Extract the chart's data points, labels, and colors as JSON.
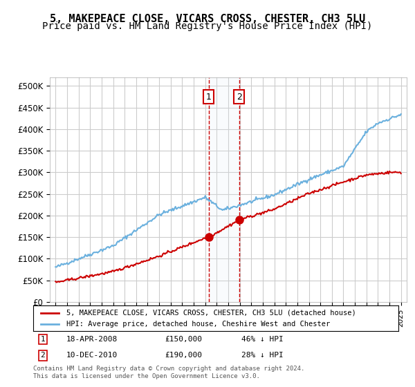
{
  "title": "5, MAKEPEACE CLOSE, VICARS CROSS, CHESTER, CH3 5LU",
  "subtitle": "Price paid vs. HM Land Registry's House Price Index (HPI)",
  "xlabel": "",
  "ylabel": "",
  "ylim": [
    0,
    500000
  ],
  "yticks": [
    0,
    50000,
    100000,
    150000,
    200000,
    250000,
    300000,
    350000,
    400000,
    450000,
    500000
  ],
  "ytick_labels": [
    "£0",
    "£50K",
    "£100K",
    "£150K",
    "£200K",
    "£250K",
    "£300K",
    "£350K",
    "£400K",
    "£450K",
    "£500K"
  ],
  "hpi_color": "#6ab0de",
  "price_color": "#cc0000",
  "marker_color": "#cc0000",
  "annotation_bg": "#dce9f5",
  "annotation_border": "#cc0000",
  "grid_color": "#cccccc",
  "background_color": "#ffffff",
  "sale1_date_num": 2008.3,
  "sale2_date_num": 2010.94,
  "sale1_label": "1",
  "sale2_label": "2",
  "sale1_price": 150000,
  "sale2_price": 190000,
  "legend_entry1": "5, MAKEPEACE CLOSE, VICARS CROSS, CHESTER, CH3 5LU (detached house)",
  "legend_entry2": "HPI: Average price, detached house, Cheshire West and Chester",
  "table_row1": "1    18-APR-2008    £150,000    46% ↓ HPI",
  "table_row2": "2    10-DEC-2010    £190,000    28% ↓ HPI",
  "footnote": "Contains HM Land Registry data © Crown copyright and database right 2024.\nThis data is licensed under the Open Government Licence v3.0.",
  "title_fontsize": 11,
  "subtitle_fontsize": 10
}
